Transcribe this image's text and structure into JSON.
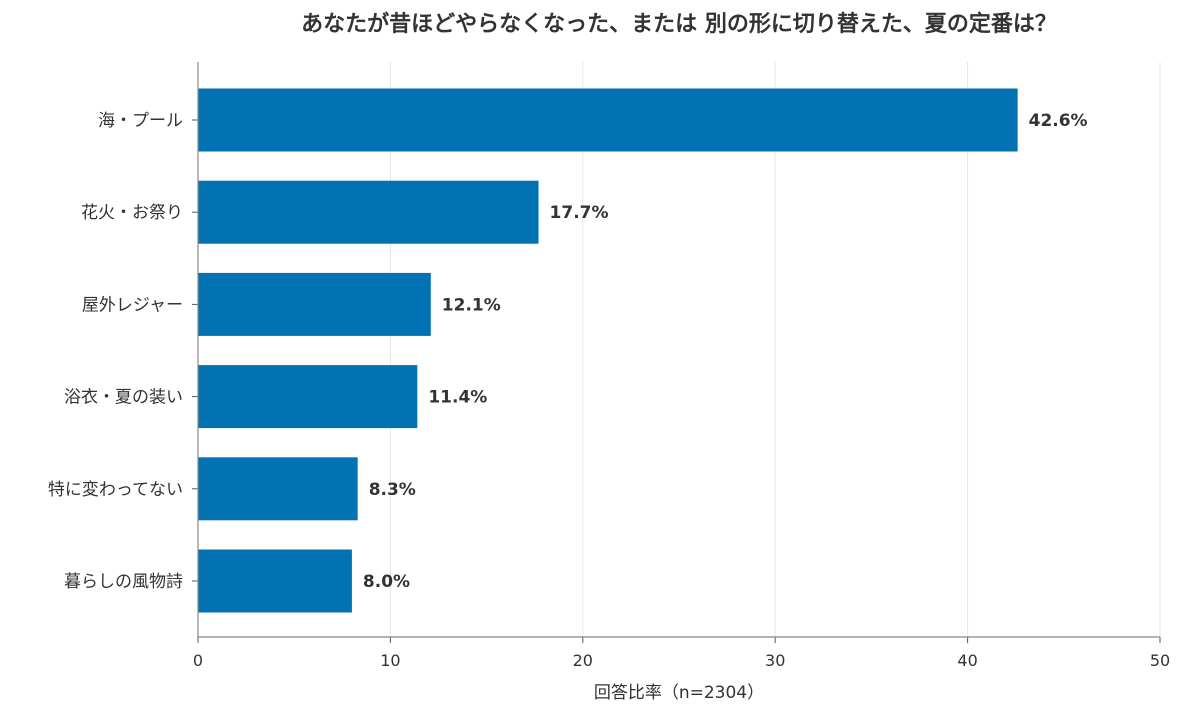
{
  "chart_data": {
    "type": "bar",
    "orientation": "horizontal",
    "title": "あなたが昔ほどやらなくなった、または 別の形に切り替えた、夏の定番は？",
    "xlabel": "回答比率（n=2304）",
    "ylabel": "",
    "xlim": [
      0,
      50
    ],
    "xticks": [
      0,
      10,
      20,
      30,
      40,
      50
    ],
    "grid": "vertical",
    "categories": [
      "海・プール",
      "花火・お祭り",
      "屋外レジャー",
      "浴衣・夏の装い",
      "特に変わってない",
      "暮らしの風物詩"
    ],
    "values": [
      42.6,
      17.7,
      12.1,
      11.4,
      8.3,
      8.0
    ],
    "data_labels": [
      "42.6%",
      "17.7%",
      "12.1%",
      "11.4%",
      "8.3%",
      "8.0%"
    ],
    "bar_color": "#0272b3"
  }
}
